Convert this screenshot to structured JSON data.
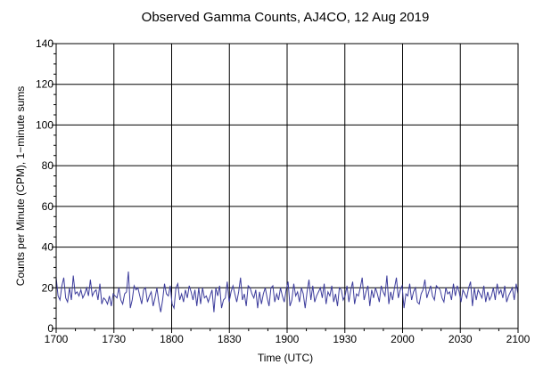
{
  "chart_data": {
    "type": "line",
    "title": "Observed Gamma Counts, AJ4CO, 12 Aug 2019",
    "xlabel": "Time (UTC)",
    "ylabel": "Counts per Minute (CPM), 1−minute sums",
    "x_range_minutes_span": [
      0,
      240
    ],
    "ylim": [
      0,
      140
    ],
    "x_ticks": [
      {
        "label": "1700",
        "minutes": 0
      },
      {
        "label": "1730",
        "minutes": 30
      },
      {
        "label": "1800",
        "minutes": 60
      },
      {
        "label": "1830",
        "minutes": 90
      },
      {
        "label": "1900",
        "minutes": 120
      },
      {
        "label": "1930",
        "minutes": 150
      },
      {
        "label": "2000",
        "minutes": 180
      },
      {
        "label": "2030",
        "minutes": 210
      },
      {
        "label": "2100",
        "minutes": 240
      }
    ],
    "y_ticks": [
      0,
      20,
      40,
      60,
      80,
      100,
      120,
      140
    ],
    "grid": true,
    "series": [
      {
        "name": "",
        "color": "#3c3c9c",
        "values": [
          25,
          16,
          14,
          21,
          25,
          15,
          13,
          20,
          14,
          26,
          17,
          18,
          16,
          19,
          15,
          17,
          20,
          16,
          24,
          16,
          18,
          19,
          14,
          22,
          12,
          15,
          14,
          12,
          16,
          11,
          17,
          16,
          15,
          20,
          14,
          12,
          17,
          18,
          28,
          10,
          14,
          21,
          19,
          20,
          16,
          12,
          19,
          20,
          13,
          16,
          18,
          11,
          15,
          20,
          13,
          8,
          14,
          22,
          17,
          16,
          21,
          12,
          10,
          20,
          22,
          14,
          17,
          13,
          19,
          15,
          21,
          18,
          14,
          19,
          11,
          20,
          12,
          20,
          15,
          16,
          13,
          16,
          19,
          8,
          20,
          16,
          21,
          10,
          14,
          15,
          23,
          13,
          18,
          21,
          17,
          13,
          18,
          25,
          14,
          17,
          11,
          21,
          20,
          17,
          15,
          19,
          10,
          18,
          12,
          17,
          20,
          15,
          11,
          20,
          21,
          13,
          17,
          14,
          20,
          16,
          13,
          19,
          23,
          11,
          14,
          22,
          16,
          18,
          13,
          20,
          17,
          10,
          18,
          24,
          14,
          21,
          13,
          16,
          18,
          20,
          15,
          22,
          12,
          18,
          16,
          21,
          13,
          17,
          11,
          20,
          19,
          14,
          16,
          21,
          13,
          19,
          23,
          12,
          17,
          16,
          20,
          25,
          14,
          18,
          21,
          11,
          19,
          15,
          20,
          17,
          13,
          21,
          18,
          16,
          26,
          12,
          18,
          14,
          20,
          25,
          15,
          19,
          21,
          10,
          17,
          16,
          22,
          14,
          18,
          20,
          13,
          12,
          17,
          19,
          24,
          15,
          18,
          21,
          16,
          14,
          21,
          20,
          19,
          15,
          13,
          20,
          17,
          18,
          14,
          22,
          16,
          21,
          18,
          13,
          19,
          17,
          15,
          20,
          23,
          11,
          20,
          14,
          19,
          17,
          15,
          21,
          13,
          18,
          14,
          16,
          20,
          14,
          22,
          17,
          19,
          15,
          21,
          13,
          16,
          18,
          20,
          14,
          22,
          17
        ]
      }
    ]
  }
}
